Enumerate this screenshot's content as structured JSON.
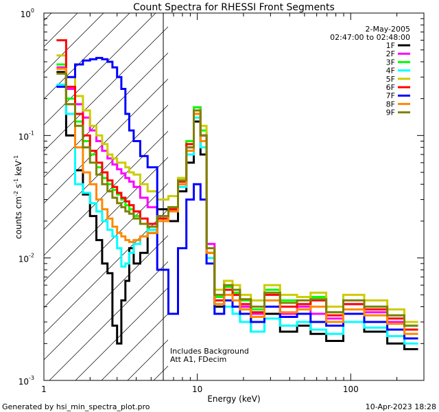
{
  "chart_data": {
    "type": "line",
    "title": "Count Spectra for RHESSI Front Segments",
    "xlabel": "Energy (keV)",
    "ylabel_main": "counts cm",
    "ylabel_exp1": "-2",
    "ylabel_mid": " s",
    "ylabel_exp2": "-1",
    "ylabel_end": " keV",
    "ylabel_exp3": "-1",
    "xscale": "log",
    "yscale": "log",
    "xlim": [
      1,
      300
    ],
    "ylim": [
      0.001,
      1
    ],
    "xticks": [
      {
        "value": 1,
        "label": "1"
      },
      {
        "value": 10,
        "label": "10"
      },
      {
        "value": 100,
        "label": "100"
      }
    ],
    "yticks": [
      {
        "value": 0.001,
        "base": "10",
        "exp": "-3"
      },
      {
        "value": 0.01,
        "base": "10",
        "exp": "-2"
      },
      {
        "value": 0.1,
        "base": "10",
        "exp": "-1"
      },
      {
        "value": 1,
        "base": "10",
        "exp": "0"
      }
    ],
    "date": "2-May-2005",
    "time_range": "02:47:00 to 02:48:00",
    "attenuator_boundary_keV": 6,
    "annotations": [
      "Includes Background",
      "Att A1, FDecim"
    ],
    "footer_left": "Generated by hsi_min_spectra_plot.pro",
    "footer_right": "10-Apr-2023 18:28",
    "series": [
      {
        "name": "1F",
        "color": "#000000",
        "x": [
          1.3,
          1.5,
          1.7,
          1.9,
          2.1,
          2.3,
          2.5,
          2.7,
          2.9,
          3.1,
          3.3,
          3.5,
          3.7,
          4.0,
          4.5,
          5,
          6,
          7,
          8,
          9,
          10,
          11,
          12,
          14,
          16,
          18,
          20,
          25,
          30,
          40,
          50,
          60,
          80,
          100,
          150,
          200,
          250
        ],
        "y": [
          0.33,
          0.1,
          0.052,
          0.033,
          0.022,
          0.014,
          0.009,
          0.0075,
          0.0028,
          0.002,
          0.0045,
          0.0065,
          0.012,
          0.009,
          0.011,
          0.016,
          0.025,
          0.02,
          0.035,
          0.06,
          0.13,
          0.07,
          0.012,
          0.004,
          0.0065,
          0.0045,
          0.004,
          0.0025,
          0.0035,
          0.0025,
          0.0028,
          0.0024,
          0.0021,
          0.0035,
          0.0025,
          0.002,
          0.0018
        ]
      },
      {
        "name": "2F",
        "color": "#ff00ff",
        "x": [
          1.3,
          1.5,
          1.7,
          1.9,
          2.1,
          2.3,
          2.5,
          2.7,
          2.9,
          3.1,
          3.3,
          3.5,
          3.7,
          4.0,
          4.5,
          5,
          6,
          7,
          8,
          9,
          10,
          11,
          12,
          14,
          16,
          18,
          20,
          25,
          30,
          40,
          50,
          60,
          80,
          100,
          150,
          200,
          250
        ],
        "y": [
          0.36,
          0.24,
          0.18,
          0.14,
          0.11,
          0.09,
          0.075,
          0.065,
          0.058,
          0.053,
          0.049,
          0.045,
          0.042,
          0.038,
          0.031,
          0.026,
          0.022,
          0.025,
          0.04,
          0.08,
          0.17,
          0.1,
          0.013,
          0.0045,
          0.0055,
          0.005,
          0.004,
          0.0035,
          0.0045,
          0.0035,
          0.004,
          0.0035,
          0.0032,
          0.0042,
          0.0036,
          0.003,
          0.0026
        ]
      },
      {
        "name": "3F",
        "color": "#00ff00",
        "x": [
          1.3,
          1.5,
          1.7,
          1.9,
          2.1,
          2.3,
          2.5,
          2.7,
          2.9,
          3.1,
          3.3,
          3.5,
          3.7,
          4.0,
          4.5,
          5,
          6,
          7,
          8,
          9,
          10,
          11,
          12,
          14,
          16,
          18,
          20,
          25,
          30,
          40,
          50,
          60,
          80,
          100,
          150,
          200,
          250
        ],
        "y": [
          0.38,
          0.2,
          0.13,
          0.09,
          0.07,
          0.055,
          0.045,
          0.04,
          0.036,
          0.033,
          0.03,
          0.027,
          0.025,
          0.022,
          0.019,
          0.017,
          0.021,
          0.026,
          0.045,
          0.09,
          0.17,
          0.11,
          0.011,
          0.0048,
          0.0058,
          0.0052,
          0.0045,
          0.0038,
          0.0055,
          0.0045,
          0.0042,
          0.0048,
          0.0036,
          0.0045,
          0.004,
          0.0034,
          0.0028
        ]
      },
      {
        "name": "4F",
        "color": "#00ffff",
        "x": [
          1.3,
          1.5,
          1.7,
          1.9,
          2.1,
          2.3,
          2.5,
          2.7,
          2.9,
          3.1,
          3.3,
          3.5,
          3.7,
          4.0,
          4.5,
          5,
          6,
          7,
          8,
          9,
          10,
          11,
          12,
          14,
          16,
          18,
          20,
          25,
          30,
          40,
          50,
          60,
          80,
          100,
          150,
          200,
          250
        ],
        "y": [
          0.26,
          0.15,
          0.04,
          0.034,
          0.028,
          0.024,
          0.02,
          0.017,
          0.015,
          0.012,
          0.0085,
          0.009,
          0.011,
          0.013,
          0.015,
          0.017,
          0.02,
          0.025,
          0.038,
          0.07,
          0.14,
          0.08,
          0.01,
          0.0035,
          0.004,
          0.0035,
          0.003,
          0.0025,
          0.0032,
          0.0028,
          0.003,
          0.0026,
          0.0024,
          0.003,
          0.0027,
          0.0023,
          0.002
        ]
      },
      {
        "name": "5F",
        "color": "#cccc00",
        "x": [
          1.3,
          1.5,
          1.7,
          1.9,
          2.1,
          2.3,
          2.5,
          2.7,
          2.9,
          3.1,
          3.3,
          3.5,
          3.7,
          4.0,
          4.5,
          5,
          6,
          7,
          8,
          9,
          10,
          11,
          12,
          14,
          16,
          18,
          20,
          25,
          30,
          40,
          50,
          60,
          80,
          100,
          150,
          200,
          250
        ],
        "y": [
          0.45,
          0.3,
          0.21,
          0.16,
          0.12,
          0.1,
          0.085,
          0.07,
          0.065,
          0.06,
          0.06,
          0.055,
          0.05,
          0.048,
          0.04,
          0.035,
          0.03,
          0.032,
          0.045,
          0.085,
          0.16,
          0.12,
          0.012,
          0.0055,
          0.0065,
          0.006,
          0.005,
          0.0045,
          0.006,
          0.005,
          0.0048,
          0.0052,
          0.004,
          0.005,
          0.0045,
          0.0038,
          0.003
        ]
      },
      {
        "name": "6F",
        "color": "#ff0000",
        "x": [
          1.3,
          1.5,
          1.7,
          1.9,
          2.1,
          2.3,
          2.5,
          2.7,
          2.9,
          3.1,
          3.3,
          3.5,
          3.7,
          4.0,
          4.5,
          5,
          6,
          7,
          8,
          9,
          10,
          11,
          12,
          14,
          16,
          18,
          20,
          25,
          30,
          40,
          50,
          60,
          80,
          100,
          150,
          200,
          250
        ],
        "y": [
          0.6,
          0.25,
          0.15,
          0.1,
          0.075,
          0.06,
          0.05,
          0.043,
          0.038,
          0.034,
          0.031,
          0.029,
          0.027,
          0.024,
          0.021,
          0.019,
          0.021,
          0.025,
          0.042,
          0.085,
          0.15,
          0.1,
          0.011,
          0.0045,
          0.0055,
          0.005,
          0.0042,
          0.0036,
          0.005,
          0.004,
          0.0042,
          0.0045,
          0.0034,
          0.0042,
          0.0038,
          0.0032,
          0.0026
        ]
      },
      {
        "name": "7F",
        "color": "#0000ff",
        "x": [
          1.3,
          1.5,
          1.7,
          1.9,
          2.1,
          2.3,
          2.5,
          2.7,
          2.9,
          3.1,
          3.3,
          3.5,
          3.7,
          4.0,
          4.5,
          5,
          6,
          7,
          8,
          9,
          10,
          11,
          12,
          14,
          16,
          18,
          20,
          25,
          30,
          40,
          50,
          60,
          80,
          100,
          150,
          200,
          250
        ],
        "y": [
          0.25,
          0.3,
          0.38,
          0.41,
          0.42,
          0.43,
          0.42,
          0.4,
          0.36,
          0.3,
          0.24,
          0.15,
          0.11,
          0.09,
          0.068,
          0.055,
          0.008,
          0.0035,
          0.012,
          0.03,
          0.04,
          0.03,
          0.009,
          0.0035,
          0.0045,
          0.004,
          0.0035,
          0.003,
          0.004,
          0.0033,
          0.0035,
          0.003,
          0.0028,
          0.0035,
          0.003,
          0.0026,
          0.0022
        ]
      },
      {
        "name": "8F",
        "color": "#ff8800",
        "x": [
          1.3,
          1.5,
          1.7,
          1.9,
          2.1,
          2.3,
          2.5,
          2.7,
          2.9,
          3.1,
          3.3,
          3.5,
          3.7,
          4.0,
          4.5,
          5,
          6,
          7,
          8,
          9,
          10,
          11,
          12,
          14,
          16,
          18,
          20,
          25,
          30,
          40,
          50,
          60,
          80,
          100,
          150,
          200,
          250
        ],
        "y": [
          0.35,
          0.18,
          0.08,
          0.05,
          0.04,
          0.03,
          0.025,
          0.021,
          0.018,
          0.016,
          0.015,
          0.014,
          0.0135,
          0.014,
          0.015,
          0.016,
          0.02,
          0.024,
          0.04,
          0.075,
          0.15,
          0.09,
          0.011,
          0.0042,
          0.005,
          0.0045,
          0.0038,
          0.0033,
          0.0045,
          0.0036,
          0.0038,
          0.004,
          0.003,
          0.0038,
          0.0034,
          0.0029,
          0.0024
        ]
      },
      {
        "name": "9F",
        "color": "#808000",
        "x": [
          1.3,
          1.5,
          1.7,
          1.9,
          2.1,
          2.3,
          2.5,
          2.7,
          2.9,
          3.1,
          3.3,
          3.5,
          3.7,
          4.0,
          4.5,
          5,
          6,
          7,
          8,
          9,
          10,
          11,
          12,
          14,
          16,
          18,
          20,
          25,
          30,
          40,
          50,
          60,
          80,
          100,
          150,
          200,
          250
        ],
        "y": [
          0.32,
          0.18,
          0.12,
          0.08,
          0.06,
          0.048,
          0.04,
          0.035,
          0.031,
          0.028,
          0.026,
          0.024,
          0.023,
          0.021,
          0.019,
          0.018,
          0.022,
          0.026,
          0.043,
          0.08,
          0.16,
          0.1,
          0.012,
          0.005,
          0.006,
          0.0055,
          0.0046,
          0.004,
          0.0052,
          0.0043,
          0.0045,
          0.0046,
          0.0036,
          0.0045,
          0.004,
          0.0034,
          0.0028
        ]
      }
    ]
  }
}
